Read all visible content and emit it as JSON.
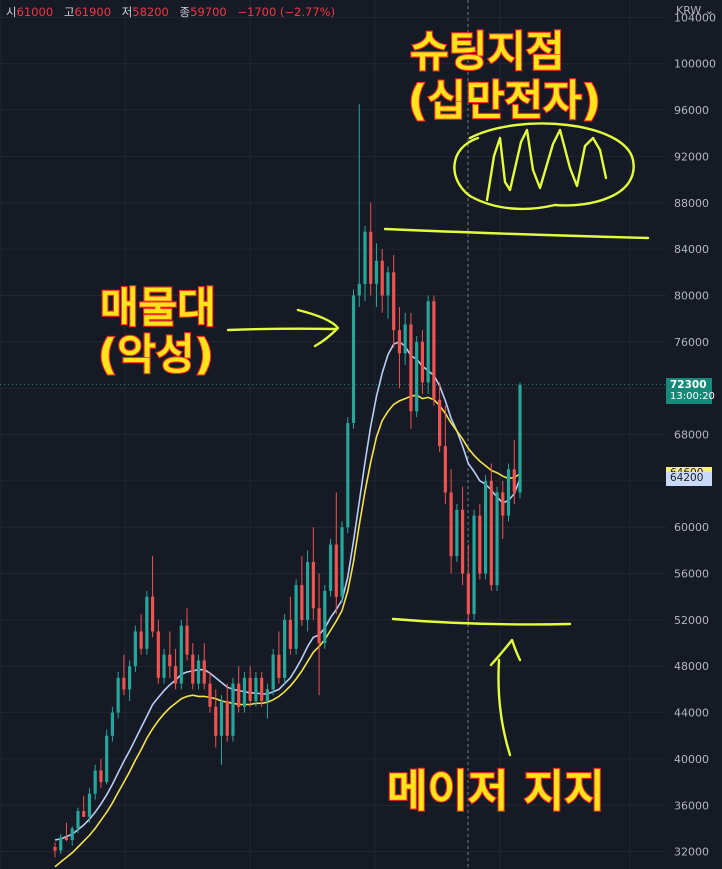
{
  "header": {
    "open_label": "시",
    "open": "61000",
    "high_label": "고",
    "high": "61900",
    "low_label": "저",
    "low": "58200",
    "close_label": "종",
    "close": "59700",
    "change": "−1700 (−2.77%)",
    "currency": "KRW"
  },
  "chart_data": {
    "type": "candlestick",
    "currency": "KRW",
    "ylim": [
      30500,
      105500
    ],
    "y_ticks": [
      32000,
      36000,
      40000,
      44000,
      48000,
      52000,
      56000,
      60000,
      64000,
      68000,
      72000,
      76000,
      80000,
      84000,
      88000,
      92000,
      96000,
      100000,
      104000
    ],
    "last_price": {
      "value": "72300",
      "countdown": "13:00:20"
    },
    "ma_labels": [
      {
        "value": "64600",
        "color": "#f0e68c"
      },
      {
        "value": "64200",
        "color": "#b0c8f0"
      }
    ],
    "candles": [
      [
        32400,
        32800,
        31500,
        32100
      ],
      [
        32100,
        33500,
        31800,
        33200
      ],
      [
        33200,
        34500,
        32900,
        33000
      ],
      [
        33000,
        34200,
        32500,
        34000
      ],
      [
        34000,
        35800,
        33600,
        35500
      ],
      [
        35500,
        36800,
        35000,
        35000
      ],
      [
        35000,
        37500,
        34500,
        37000
      ],
      [
        37000,
        39500,
        36500,
        39000
      ],
      [
        39000,
        40000,
        37500,
        38000
      ],
      [
        38000,
        42500,
        37800,
        42000
      ],
      [
        42000,
        44500,
        41500,
        44000
      ],
      [
        44000,
        47500,
        43500,
        47000
      ],
      [
        47000,
        49000,
        45500,
        46000
      ],
      [
        46000,
        48500,
        45000,
        48000
      ],
      [
        48000,
        51500,
        47500,
        51000
      ],
      [
        51000,
        52500,
        49000,
        49500
      ],
      [
        49500,
        54500,
        49000,
        54000
      ],
      [
        54000,
        57500,
        50500,
        51000
      ],
      [
        51000,
        52000,
        46500,
        47000
      ],
      [
        47000,
        49500,
        46500,
        49000
      ],
      [
        49000,
        51000,
        47000,
        48000
      ],
      [
        48000,
        49500,
        46000,
        46500
      ],
      [
        46500,
        52000,
        46000,
        51500
      ],
      [
        51500,
        53000,
        48500,
        49000
      ],
      [
        49000,
        50000,
        46000,
        46500
      ],
      [
        46500,
        49000,
        46000,
        48500
      ],
      [
        48500,
        50000,
        46000,
        46500
      ],
      [
        46500,
        47500,
        44000,
        44500
      ],
      [
        44500,
        46000,
        41000,
        42000
      ],
      [
        42000,
        45500,
        39500,
        45000
      ],
      [
        45000,
        46500,
        41500,
        42000
      ],
      [
        42000,
        47000,
        41500,
        46500
      ],
      [
        46500,
        48000,
        44000,
        44500
      ],
      [
        44500,
        47500,
        44000,
        47000
      ],
      [
        47000,
        48000,
        44500,
        45000
      ],
      [
        45000,
        47500,
        44500,
        47000
      ],
      [
        47000,
        47500,
        44500,
        45000
      ],
      [
        45000,
        46500,
        43500,
        46000
      ],
      [
        46000,
        49500,
        45500,
        49000
      ],
      [
        49000,
        51000,
        46500,
        47000
      ],
      [
        47000,
        52500,
        46500,
        52000
      ],
      [
        52000,
        54000,
        49000,
        49500
      ],
      [
        49500,
        55500,
        49000,
        55000
      ],
      [
        55000,
        57500,
        51500,
        52000
      ],
      [
        52000,
        58000,
        51000,
        57000
      ],
      [
        57000,
        60000,
        52000,
        53000
      ],
      [
        53000,
        56000,
        45500,
        50000
      ],
      [
        50000,
        55000,
        49500,
        54500
      ],
      [
        54500,
        59000,
        54000,
        58500
      ],
      [
        58500,
        63000,
        52500,
        54000
      ],
      [
        54000,
        60500,
        53500,
        60000
      ],
      [
        60000,
        69500,
        59500,
        69000
      ],
      [
        69000,
        80500,
        68500,
        80000
      ],
      [
        80000,
        96500,
        79000,
        81000
      ],
      [
        81000,
        86000,
        79500,
        85500
      ],
      [
        85500,
        88000,
        80000,
        81000
      ],
      [
        81000,
        84500,
        79000,
        83000
      ],
      [
        83000,
        84000,
        78500,
        80000
      ],
      [
        80000,
        82500,
        78000,
        82000
      ],
      [
        82000,
        83500,
        75500,
        77000
      ],
      [
        77000,
        79000,
        72000,
        75000
      ],
      [
        75000,
        78500,
        74000,
        77500
      ],
      [
        77500,
        78500,
        68500,
        70000
      ],
      [
        70000,
        76500,
        69500,
        76000
      ],
      [
        76000,
        77000,
        71500,
        72500
      ],
      [
        72500,
        80000,
        71500,
        79500
      ],
      [
        79500,
        80000,
        70500,
        71000
      ],
      [
        71000,
        72500,
        66500,
        67000
      ],
      [
        67000,
        70500,
        62000,
        63000
      ],
      [
        63000,
        65000,
        56000,
        57500
      ],
      [
        57500,
        62000,
        57000,
        61500
      ],
      [
        61500,
        63500,
        55000,
        56000
      ],
      [
        56000,
        58500,
        51500,
        52500
      ],
      [
        52500,
        61500,
        52000,
        61000
      ],
      [
        61000,
        62000,
        55500,
        56000
      ],
      [
        56000,
        64500,
        55500,
        64000
      ],
      [
        64000,
        65500,
        54500,
        55000
      ],
      [
        55000,
        63500,
        54500,
        63000
      ],
      [
        63000,
        64000,
        59000,
        61000
      ],
      [
        61000,
        65500,
        60500,
        65000
      ],
      [
        65000,
        67500,
        62000,
        63000
      ],
      [
        63000,
        72500,
        62500,
        72300
      ]
    ],
    "series": [
      {
        "color": "#b8cef5",
        "values": [
          33000,
          33100,
          33300,
          33500,
          33900,
          34300,
          34800,
          35400,
          36100,
          36900,
          37800,
          38800,
          39800,
          40700,
          41700,
          42700,
          43700,
          44700,
          45300,
          45900,
          46400,
          46800,
          47300,
          47500,
          47600,
          47700,
          47700,
          47400,
          47000,
          46600,
          46200,
          46000,
          45900,
          45800,
          45700,
          45700,
          45600,
          45600,
          45800,
          46000,
          46500,
          47000,
          47800,
          48700,
          49700,
          50500,
          50700,
          51300,
          52200,
          52900,
          53700,
          55700,
          58800,
          62200,
          65600,
          68700,
          71300,
          73300,
          74900,
          75800,
          76000,
          75600,
          74800,
          74500,
          73900,
          73500,
          73100,
          72200,
          70900,
          69400,
          68300,
          67000,
          65500,
          64800,
          64000,
          63700,
          63200,
          62600,
          62100,
          62300,
          62900,
          64200
        ]
      },
      {
        "color": "#f2e34d",
        "values": [
          30700,
          31100,
          31500,
          31900,
          32400,
          32900,
          33400,
          34000,
          34700,
          35400,
          36200,
          37100,
          38000,
          38900,
          39900,
          40800,
          41800,
          42600,
          43300,
          43900,
          44400,
          44800,
          45200,
          45400,
          45500,
          45400,
          45400,
          45300,
          45200,
          45000,
          44900,
          44800,
          44700,
          44700,
          44700,
          44800,
          44800,
          44900,
          45100,
          45400,
          45800,
          46300,
          46900,
          47600,
          48400,
          49200,
          49700,
          50300,
          51100,
          51900,
          52800,
          54500,
          57000,
          60200,
          63100,
          65600,
          67800,
          69200,
          70000,
          70600,
          70900,
          71100,
          71300,
          71400,
          71100,
          71200,
          71000,
          70500,
          69800,
          69000,
          68300,
          67600,
          66800,
          66200,
          65700,
          65300,
          64900,
          64700,
          64400,
          64200,
          64300,
          64600
        ]
      }
    ]
  },
  "annotations": {
    "shooting_label_1": "슈팅지점",
    "shooting_label_2": "(십만전자)",
    "supply_label_1": "매물대",
    "supply_label_2": "(악성)",
    "support_label": "메이저 지지"
  }
}
